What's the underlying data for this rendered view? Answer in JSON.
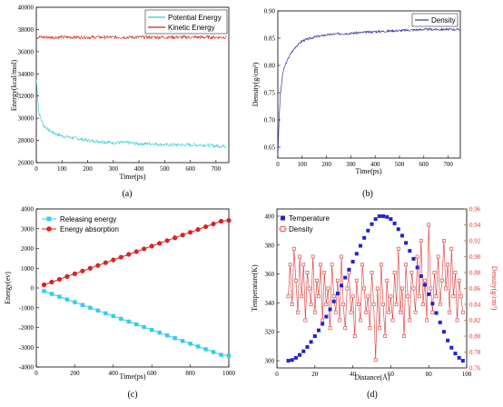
{
  "chart_data": [
    {
      "type": "line",
      "caption": "(a)",
      "xlabel": "Time(ps)",
      "ylabel": "Energy(kcal/mol)",
      "xlim": [
        0,
        750
      ],
      "ylim": [
        26000,
        40000
      ],
      "xticks": [
        "0",
        "100",
        "200",
        "300",
        "400",
        "500",
        "600",
        "700"
      ],
      "yticks": [
        "26000",
        "28000",
        "30000",
        "32000",
        "34000",
        "36000",
        "38000",
        "40000"
      ],
      "legend_position": "top-right",
      "colors": {
        "potential": "#33cccc",
        "kinetic": "#cc2222"
      },
      "series": [
        {
          "name": "Potential Energy",
          "x": [
            0,
            10,
            20,
            30,
            50,
            75,
            100,
            150,
            200,
            250,
            300,
            350,
            400,
            450,
            500,
            550,
            600,
            650,
            700,
            740
          ],
          "values": [
            33500,
            30500,
            29800,
            29300,
            28900,
            28600,
            28400,
            28200,
            28000,
            27900,
            27800,
            27800,
            27700,
            27700,
            27600,
            27600,
            27600,
            27600,
            27500,
            27500
          ]
        },
        {
          "name": "Kinetic Energy",
          "x": [
            0,
            100,
            200,
            300,
            400,
            500,
            600,
            700,
            740
          ],
          "values": [
            37300,
            37300,
            37300,
            37300,
            37300,
            37300,
            37300,
            37300,
            37300
          ]
        }
      ]
    },
    {
      "type": "line",
      "caption": "(b)",
      "xlabel": "Time(ps)",
      "ylabel": "Density(g/cm³)",
      "xlim": [
        0,
        750
      ],
      "ylim": [
        0.63,
        0.9
      ],
      "xticks": [
        "0",
        "100",
        "200",
        "300",
        "400",
        "500",
        "600",
        "700"
      ],
      "yticks": [
        "0.65",
        "0.70",
        "0.75",
        "0.80",
        "0.85",
        "0.90"
      ],
      "legend_position": "top-right",
      "colors": {
        "density": "#3333aa"
      },
      "series": [
        {
          "name": "Density",
          "x": [
            0,
            5,
            10,
            20,
            30,
            50,
            75,
            100,
            150,
            200,
            250,
            300,
            400,
            500,
            600,
            700,
            750
          ],
          "values": [
            0.63,
            0.7,
            0.745,
            0.785,
            0.8,
            0.82,
            0.835,
            0.845,
            0.852,
            0.856,
            0.858,
            0.859,
            0.862,
            0.864,
            0.866,
            0.866,
            0.866
          ]
        }
      ]
    },
    {
      "type": "line",
      "caption": "(c)",
      "xlabel": "Time(ps)",
      "ylabel": "Energy(ev)",
      "xlim": [
        0,
        1000
      ],
      "ylim": [
        -4000,
        4000
      ],
      "xticks": [
        "0",
        "200",
        "400",
        "600",
        "800",
        "1000"
      ],
      "yticks": [
        "-4000",
        "-3000",
        "-2000",
        "-1000",
        "0",
        "1000",
        "2000",
        "3000",
        "4000"
      ],
      "legend_position": "top-left",
      "colors": {
        "releasing": "#33ccee",
        "absorption": "#dd2222"
      },
      "series": [
        {
          "name": "Releasing energy",
          "x": [
            40,
            80,
            120,
            160,
            200,
            240,
            280,
            320,
            360,
            400,
            440,
            480,
            520,
            560,
            600,
            640,
            680,
            720,
            760,
            800,
            840,
            880,
            920,
            960,
            1000
          ],
          "values": [
            -160,
            -300,
            -440,
            -580,
            -720,
            -860,
            -1000,
            -1140,
            -1280,
            -1420,
            -1560,
            -1700,
            -1840,
            -1980,
            -2120,
            -2260,
            -2400,
            -2540,
            -2680,
            -2820,
            -2960,
            -3100,
            -3240,
            -3380,
            -3420
          ]
        },
        {
          "name": "Energy absorption",
          "x": [
            40,
            80,
            120,
            160,
            200,
            240,
            280,
            320,
            360,
            400,
            440,
            480,
            520,
            560,
            600,
            640,
            680,
            720,
            760,
            800,
            840,
            880,
            920,
            960,
            1000
          ],
          "values": [
            160,
            300,
            440,
            580,
            720,
            860,
            1000,
            1140,
            1280,
            1420,
            1560,
            1700,
            1840,
            1980,
            2120,
            2260,
            2400,
            2540,
            2680,
            2820,
            2960,
            3100,
            3240,
            3380,
            3420
          ]
        }
      ]
    },
    {
      "type": "scatter",
      "caption": "(d)",
      "xlabel": "Distance(Å)",
      "ylabel": "Temperature(K)",
      "ylabel_right": "Density(g/cm³)",
      "xlim": [
        0,
        100
      ],
      "ylim": [
        295,
        405
      ],
      "ylim_right": [
        0.76,
        0.96
      ],
      "xticks": [
        "0",
        "20",
        "40",
        "60",
        "80",
        "100"
      ],
      "yticks": [
        "300",
        "320",
        "340",
        "360",
        "380",
        "400"
      ],
      "yticks_right": [
        "0.76",
        "0.78",
        "0.80",
        "0.82",
        "0.84",
        "0.86",
        "0.88",
        "0.90",
        "0.92",
        "0.94",
        "0.96"
      ],
      "legend_position": "top-left",
      "colors": {
        "temperature": "#2222cc",
        "density": "#dd3333"
      },
      "series": [
        {
          "name": "Temperature",
          "x": [
            6,
            8,
            10,
            12,
            14,
            16,
            18,
            20,
            22,
            24,
            26,
            28,
            30,
            32,
            34,
            36,
            38,
            40,
            42,
            44,
            46,
            48,
            50,
            52,
            54,
            56,
            58,
            60,
            62,
            64,
            66,
            68,
            70,
            72,
            74,
            76,
            78,
            80,
            82,
            84,
            86,
            88,
            90,
            92,
            94,
            96,
            98
          ],
          "values": [
            300,
            300.5,
            302,
            304,
            306.5,
            309.5,
            313,
            317,
            321,
            325.5,
            330.5,
            335.5,
            341,
            346.5,
            352,
            357.5,
            363,
            368.5,
            374,
            379.5,
            385,
            390,
            394.5,
            398,
            400,
            400,
            399.5,
            398,
            395,
            391,
            386.5,
            381.5,
            376,
            370.5,
            364.5,
            358.5,
            352.5,
            346,
            339.5,
            333,
            326.5,
            320,
            314,
            309,
            305,
            302,
            300
          ]
        },
        {
          "name": "Density",
          "x": [
            6,
            7,
            8,
            9,
            10,
            11,
            12,
            13,
            14,
            15,
            16,
            17,
            18,
            19,
            20,
            21,
            22,
            23,
            24,
            25,
            26,
            27,
            28,
            29,
            30,
            31,
            32,
            33,
            34,
            35,
            36,
            37,
            38,
            39,
            40,
            41,
            42,
            43,
            44,
            45,
            46,
            47,
            48,
            49,
            50,
            51,
            52,
            53,
            54,
            55,
            56,
            57,
            58,
            59,
            60,
            61,
            62,
            63,
            64,
            65,
            66,
            67,
            68,
            69,
            70,
            71,
            72,
            73,
            74,
            75,
            76,
            77,
            78,
            79,
            80,
            81,
            82,
            83,
            84,
            85,
            86,
            87,
            88,
            89,
            90,
            91,
            92,
            93,
            94,
            95,
            96,
            97,
            98
          ],
          "values": [
            0.85,
            0.89,
            0.84,
            0.91,
            0.87,
            0.83,
            0.9,
            0.85,
            0.89,
            0.82,
            0.88,
            0.86,
            0.84,
            0.9,
            0.83,
            0.87,
            0.85,
            0.89,
            0.82,
            0.88,
            0.84,
            0.86,
            0.81,
            0.89,
            0.85,
            0.83,
            0.87,
            0.82,
            0.9,
            0.84,
            0.81,
            0.86,
            0.88,
            0.83,
            0.85,
            0.8,
            0.87,
            0.84,
            0.82,
            0.89,
            0.86,
            0.83,
            0.85,
            0.81,
            0.88,
            0.84,
            0.77,
            0.86,
            0.81,
            0.89,
            0.84,
            0.8,
            0.87,
            0.83,
            0.85,
            0.82,
            0.88,
            0.84,
            0.91,
            0.83,
            0.86,
            0.8,
            0.89,
            0.85,
            0.82,
            0.88,
            0.86,
            0.83,
            0.9,
            0.85,
            0.92,
            0.84,
            0.87,
            0.82,
            0.94,
            0.86,
            0.83,
            0.88,
            0.85,
            0.9,
            0.84,
            0.87,
            0.92,
            0.86,
            0.89,
            0.83,
            0.91,
            0.85,
            0.88,
            0.82,
            0.87,
            0.85,
            0.83
          ]
        }
      ]
    }
  ]
}
